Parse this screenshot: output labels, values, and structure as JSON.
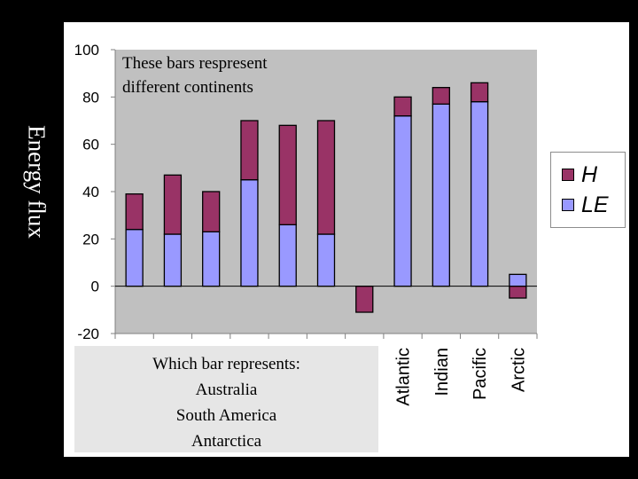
{
  "colors": {
    "background": "#000000",
    "slide": "#ffffff",
    "plot_area": "#c0c0c0",
    "h_series": "#993366",
    "le_series": "#9999ff",
    "question_box": "#e6e6e6"
  },
  "annotation": {
    "line1": "These bars respresent",
    "line2": "different continents"
  },
  "question": {
    "line1": "Which bar represents:",
    "line2": "Australia",
    "line3": "South America",
    "line4": "Antarctica"
  },
  "chart_data": {
    "type": "bar",
    "stacked": true,
    "ylabel": "Energy flux",
    "xlabel": "",
    "ylim": [
      -20,
      100
    ],
    "yticks": [
      -20,
      0,
      20,
      40,
      60,
      80,
      100
    ],
    "categories": [
      "",
      "",
      "",
      "",
      "",
      "",
      "",
      "Atlantic",
      "Indian",
      "Pacific",
      "Arctic"
    ],
    "series": [
      {
        "name": "LE",
        "values": [
          24,
          22,
          23,
          45,
          26,
          22,
          0,
          72,
          77,
          78,
          5
        ]
      },
      {
        "name": "H",
        "values": [
          15,
          25,
          17,
          25,
          42,
          48,
          -11,
          8,
          7,
          8,
          -5
        ]
      }
    ],
    "legend": [
      "H",
      "LE"
    ],
    "legend_position": "right",
    "grid": false
  }
}
